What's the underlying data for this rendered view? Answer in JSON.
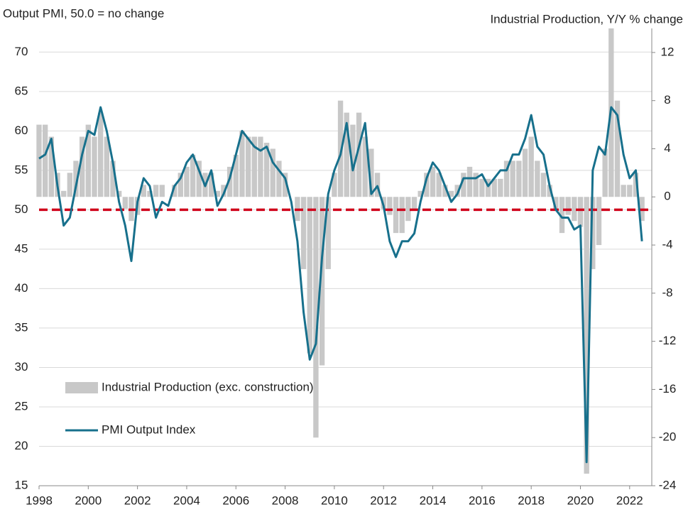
{
  "chart_data": {
    "type": "bar-line",
    "y_label": "Output  PMI, 50.0 = no change",
    "y2_label": "Industrial Production, Y/Y % change",
    "x": [
      1998,
      1998.25,
      1998.5,
      1998.75,
      1999,
      1999.25,
      1999.5,
      1999.75,
      2000,
      2000.25,
      2000.5,
      2000.75,
      2001,
      2001.25,
      2001.5,
      2001.75,
      2002,
      2002.25,
      2002.5,
      2002.75,
      2003,
      2003.25,
      2003.5,
      2003.75,
      2004,
      2004.25,
      2004.5,
      2004.75,
      2005,
      2005.25,
      2005.5,
      2005.75,
      2006,
      2006.25,
      2006.5,
      2006.75,
      2007,
      2007.25,
      2007.5,
      2007.75,
      2008,
      2008.25,
      2008.5,
      2008.75,
      2009,
      2009.25,
      2009.5,
      2009.75,
      2010,
      2010.25,
      2010.5,
      2010.75,
      2011,
      2011.25,
      2011.5,
      2011.75,
      2012,
      2012.25,
      2012.5,
      2012.75,
      2013,
      2013.25,
      2013.5,
      2013.75,
      2014,
      2014.25,
      2014.5,
      2014.75,
      2015,
      2015.25,
      2015.5,
      2015.75,
      2016,
      2016.25,
      2016.5,
      2016.75,
      2017,
      2017.25,
      2017.5,
      2017.75,
      2018,
      2018.25,
      2018.5,
      2018.75,
      2019,
      2019.25,
      2019.5,
      2019.75,
      2020,
      2020.25,
      2020.5,
      2020.75,
      2021,
      2021.25,
      2021.5,
      2021.75,
      2022,
      2022.25,
      2022.5
    ],
    "series": [
      {
        "name": "Industrial Production (exc. construction)",
        "color": "#c8c8c8",
        "axis": "y2",
        "mark": "bar",
        "values": [
          6,
          6,
          5,
          2,
          0.5,
          2,
          3,
          5,
          6,
          5,
          7,
          5,
          3,
          0.5,
          -1,
          -2,
          -1.5,
          1,
          0.5,
          1,
          1,
          0,
          1,
          2,
          2.5,
          3.5,
          3,
          2,
          2,
          0.5,
          1,
          2.5,
          3.5,
          5.5,
          5,
          5,
          5,
          4.5,
          4,
          3,
          2,
          0,
          -2,
          -6,
          -13,
          -20,
          -14,
          -6,
          2,
          8,
          7,
          6,
          7,
          5,
          4,
          2,
          -1,
          -1.5,
          -3,
          -3,
          -2,
          -1,
          0.5,
          2,
          2.5,
          2,
          1,
          0.5,
          1,
          2,
          2.5,
          2,
          1.5,
          1.5,
          1.5,
          1.5,
          3,
          3,
          3,
          4,
          5,
          3,
          2,
          1,
          -1,
          -3,
          -1.5,
          -2,
          -2.5,
          -23,
          -6,
          -4,
          4,
          14,
          8,
          1,
          1,
          2,
          -2
        ]
      },
      {
        "name": "PMI Output Index",
        "color": "#17708c",
        "axis": "y",
        "mark": "line",
        "values": [
          56.5,
          57,
          59,
          53,
          48,
          49,
          53,
          57,
          60,
          59.5,
          63,
          60,
          56,
          51,
          48,
          43.5,
          51,
          54,
          53,
          49,
          51,
          50.5,
          53,
          54,
          56,
          57,
          55,
          53,
          55,
          50.5,
          52,
          54,
          57,
          60,
          59,
          58,
          57.5,
          58,
          56,
          55,
          54,
          51,
          46,
          37,
          31,
          33,
          44,
          52,
          55,
          57,
          61,
          55,
          58,
          61,
          52,
          53,
          50.5,
          46,
          44,
          46,
          46,
          47,
          51,
          54,
          56,
          55,
          53,
          51,
          52,
          54,
          54,
          54,
          54.5,
          53,
          54,
          55,
          55,
          57,
          57,
          59,
          62,
          58,
          57,
          53,
          50,
          49,
          49,
          47.5,
          48,
          18,
          55,
          58,
          57,
          63,
          62,
          57,
          54,
          55,
          46
        ]
      }
    ],
    "xlim": [
      1998,
      2022.9
    ],
    "xticks": [
      1998,
      2000,
      2002,
      2004,
      2006,
      2008,
      2010,
      2012,
      2014,
      2016,
      2018,
      2020,
      2022
    ],
    "ylim": [
      15,
      73
    ],
    "yticks": [
      15,
      20,
      25,
      30,
      35,
      40,
      45,
      50,
      55,
      60,
      65,
      70
    ],
    "y2lim": [
      -24,
      14
    ],
    "y2ticks": [
      -24,
      -20,
      -16,
      -12,
      -8,
      -4,
      0,
      4,
      8,
      12
    ],
    "reference_line": {
      "value": 50,
      "color": "#d0021b"
    },
    "grid": true
  }
}
